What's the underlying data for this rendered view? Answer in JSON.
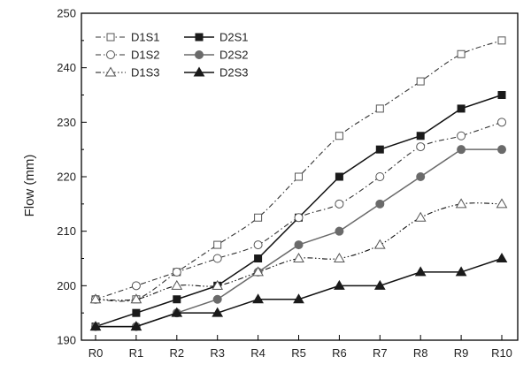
{
  "chart_data": {
    "type": "line",
    "title": "",
    "xlabel": "",
    "ylabel": "Flow (mm)",
    "categories": [
      "R0",
      "R1",
      "R2",
      "R3",
      "R4",
      "R5",
      "R6",
      "R7",
      "R8",
      "R9",
      "R10"
    ],
    "ylim": [
      190,
      250
    ],
    "yticks": [
      190,
      200,
      210,
      220,
      230,
      240,
      250
    ],
    "grid": false,
    "legend_position": "top-left",
    "series": [
      {
        "name": "D1S1",
        "marker": "square-open",
        "line": "dash-dot",
        "values": [
          197.5,
          197.5,
          202.5,
          207.5,
          212.5,
          220,
          227.5,
          232.5,
          237.5,
          242.5,
          245
        ]
      },
      {
        "name": "D2S1",
        "marker": "square-filled",
        "line": "solid",
        "values": [
          192.5,
          195,
          197.5,
          200,
          205,
          212.5,
          220,
          225,
          227.5,
          232.5,
          235
        ]
      },
      {
        "name": "D1S2",
        "marker": "circle-open",
        "line": "dash-dot",
        "values": [
          197.5,
          200,
          202.5,
          205,
          207.5,
          212.5,
          215,
          220,
          225.5,
          227.5,
          230
        ]
      },
      {
        "name": "D2S2",
        "marker": "circle-filled",
        "line": "solid",
        "values": [
          192.5,
          192.5,
          195,
          197.5,
          202.5,
          207.5,
          210,
          215,
          220,
          225,
          225
        ]
      },
      {
        "name": "D1S3",
        "marker": "triangle-open",
        "line": "dash-dot-dot",
        "values": [
          197.5,
          197.5,
          200,
          200,
          202.5,
          205,
          205,
          207.5,
          212.5,
          215,
          215
        ]
      },
      {
        "name": "D2S3",
        "marker": "triangle-filled",
        "line": "solid",
        "values": [
          192.5,
          192.5,
          195,
          195,
          197.5,
          197.5,
          200,
          200,
          202.5,
          202.5,
          205
        ]
      }
    ],
    "legend_order": [
      "D1S1",
      "D2S1",
      "D1S2",
      "D2S2",
      "D1S3",
      "D2S3"
    ]
  }
}
